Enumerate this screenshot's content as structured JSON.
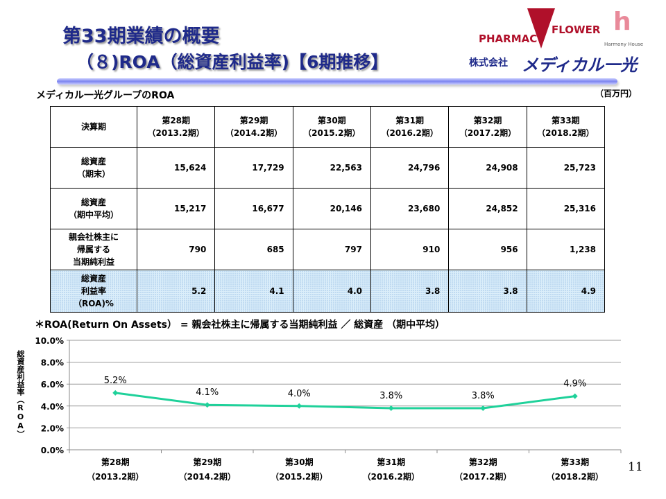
{
  "header": {
    "title": "第33期業績の概要",
    "subtitle": "（８)ROA（総資産利益率)【6期推移】"
  },
  "logos": {
    "pharmac": "PHARMAC",
    "flower": "FLOWER",
    "harmony": "Harmony House",
    "company_prefix": "株式会社",
    "company_name": "メディカル一光"
  },
  "section_title": "メディカル一光グループのROA",
  "unit": "（百万円）",
  "table": {
    "columns": [
      {
        "l1": "決算期",
        "l2": ""
      },
      {
        "l1": "第28期",
        "l2": "（2013.2期）"
      },
      {
        "l1": "第29期",
        "l2": "（2014.2期）"
      },
      {
        "l1": "第30期",
        "l2": "（2015.2期）"
      },
      {
        "l1": "第31期",
        "l2": "（2016.2期）"
      },
      {
        "l1": "第32期",
        "l2": "（2017.2期）"
      },
      {
        "l1": "第33期",
        "l2": "（2018.2期）"
      }
    ],
    "rows": [
      {
        "label": [
          "総資産",
          "（期末）"
        ],
        "values": [
          "15,624",
          "17,729",
          "22,563",
          "24,796",
          "24,908",
          "25,723"
        ]
      },
      {
        "label": [
          "総資産",
          "（期中平均）"
        ],
        "values": [
          "15,217",
          "16,677",
          "20,146",
          "23,680",
          "24,852",
          "25,316"
        ]
      },
      {
        "label": [
          "親会社株主に",
          "帰属する",
          "当期純利益"
        ],
        "values": [
          "790",
          "685",
          "797",
          "910",
          "956",
          "1,238"
        ]
      },
      {
        "label": [
          "総資産",
          "利益率",
          "（ROA)%"
        ],
        "values": [
          "5.2",
          "4.1",
          "4.0",
          "3.8",
          "3.8",
          "4.9"
        ]
      }
    ]
  },
  "formula": "＊ROA(Return On Assets） =  親会社株主に帰属する当期純利益  ／  総資産 （期中平均）",
  "page_number": "11",
  "chart_data": {
    "type": "line",
    "categories": [
      [
        "第28期",
        "（2013.2期）"
      ],
      [
        "第29期",
        "（2014.2期）"
      ],
      [
        "第30期",
        "（2015.2期）"
      ],
      [
        "第31期",
        "（2016.2期）"
      ],
      [
        "第32期",
        "（2017.2期）"
      ],
      [
        "第33期",
        "（2018.2期）"
      ]
    ],
    "values": [
      5.2,
      4.1,
      4.0,
      3.8,
      3.8,
      4.9
    ],
    "data_labels": [
      "5.2%",
      "4.1%",
      "4.0%",
      "3.8%",
      "3.8%",
      "4.9%"
    ],
    "ylabel": "総資産利益率（ROA）",
    "ylim": [
      0,
      10
    ],
    "yticks": [
      "0.0%",
      "2.0%",
      "4.0%",
      "6.0%",
      "8.0%",
      "10.0%"
    ],
    "grid": true,
    "color": "#1fd19a"
  }
}
